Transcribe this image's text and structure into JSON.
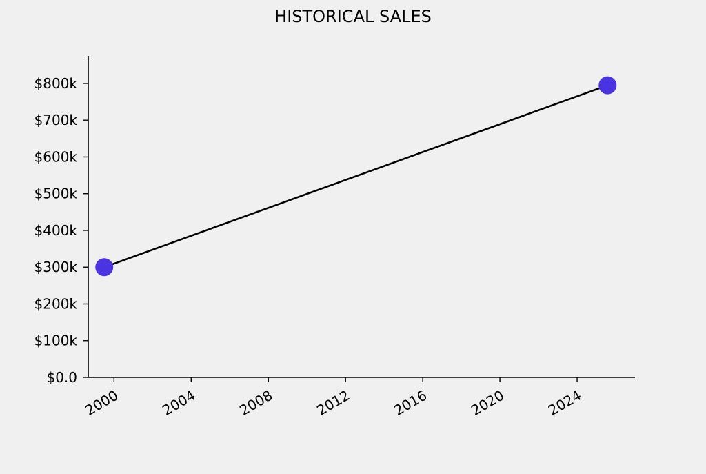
{
  "chart_data": {
    "type": "line",
    "title": "HISTORICAL SALES",
    "xlabel": "",
    "ylabel": "",
    "x_axis": {
      "ticks": [
        "2000",
        "2004",
        "2008",
        "2012",
        "2016",
        "2020",
        "2024"
      ],
      "range": [
        "1998-09-01",
        "2027-01-01"
      ]
    },
    "y_axis": {
      "ticks": [
        "$0.0",
        "$100k",
        "$200k",
        "$300k",
        "$400k",
        "$500k",
        "$600k",
        "$700k",
        "$800k"
      ],
      "range": [
        0,
        875000
      ]
    },
    "series": [
      {
        "x": [
          "1999-07-01",
          "2025-08-01"
        ],
        "values": [
          300000,
          795000
        ]
      }
    ],
    "colors": {
      "line": "#000000",
      "marker": "#4a33e0",
      "background": "#f0f0f0"
    },
    "grid": false,
    "legend": "none"
  }
}
